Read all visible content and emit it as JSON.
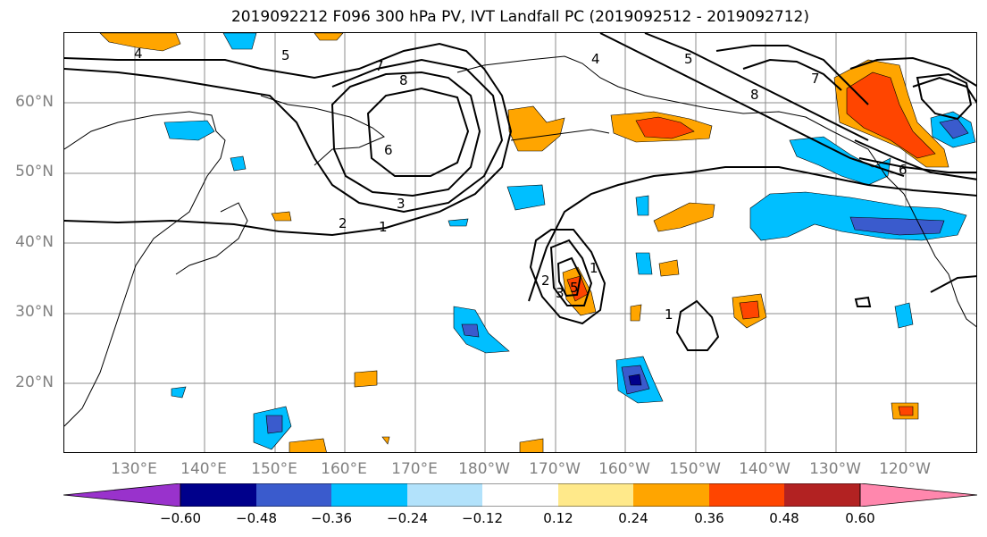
{
  "title": "2019092212 F096 300 hPa PV, IVT Landfall PC (2019092512 - 2019092712)",
  "map": {
    "lat_labels": [
      "60°N",
      "50°N",
      "40°N",
      "30°N",
      "20°N"
    ],
    "lon_labels": [
      "130°E",
      "140°E",
      "150°E",
      "160°E",
      "170°E",
      "180°W",
      "170°W",
      "160°W",
      "150°W",
      "140°W",
      "130°W",
      "120°W"
    ],
    "contour_labels": [
      "1",
      "2",
      "3",
      "4",
      "5",
      "6",
      "7",
      "8",
      "1",
      "2",
      "3",
      "4",
      "5",
      "6",
      "7",
      "8",
      "1",
      "5"
    ],
    "colors": {
      "coastline": "#000000",
      "gridline": "#8c8c8c",
      "contour": "#000000",
      "positive_anomaly": "#ffa500",
      "strong_positive": "#ff4500",
      "negative_anomaly": "#00bfff",
      "strong_negative": "#3a5bcd"
    }
  },
  "colorbar": {
    "tick_labels": [
      "−0.60",
      "−0.48",
      "−0.36",
      "−0.24",
      "−0.12",
      "0.12",
      "0.24",
      "0.36",
      "0.48",
      "0.60"
    ],
    "colors": [
      "#9932cc",
      "#00008b",
      "#3a5bcd",
      "#00bfff",
      "#b2e2fb",
      "#ffffff",
      "#ffe98a",
      "#ffa500",
      "#ff4500",
      "#b22222",
      "#ff87ad"
    ]
  }
}
